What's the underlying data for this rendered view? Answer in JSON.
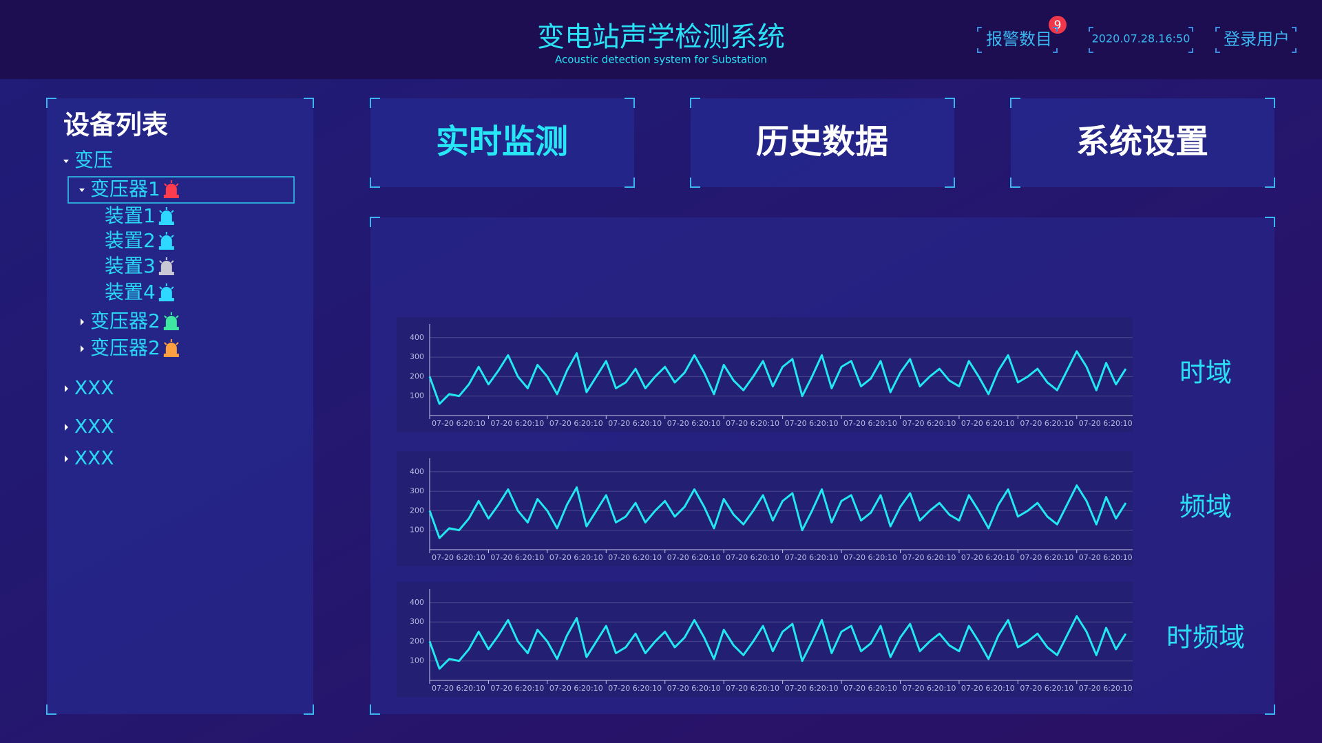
{
  "header": {
    "title": "变电站声学检测系统",
    "subtitle": "Acoustic detection system for Substation",
    "alarm_label": "报警数目",
    "alarm_count": 9,
    "datetime": "2020.07.28.16:50",
    "login": "登录用户"
  },
  "sidebar": {
    "title": "设备列表",
    "tree": [
      {
        "label": "变压",
        "expanded": true,
        "children": [
          {
            "label": "变压器1",
            "alarm": "#ff3b4e",
            "expanded": true,
            "selected": true,
            "children": [
              {
                "label": "装置1",
                "alarm": "#2fd8ff"
              },
              {
                "label": "装置2",
                "alarm": "#2fd8ff"
              },
              {
                "label": "装置3",
                "alarm": "#c9c9d6"
              },
              {
                "label": "装置4",
                "alarm": "#2fd8ff"
              }
            ]
          },
          {
            "label": "变压器2",
            "alarm": "#3ee8a0",
            "expanded": false
          },
          {
            "label": "变压器2",
            "alarm": "#ffa040",
            "expanded": false
          }
        ]
      },
      {
        "label": "XXX",
        "expanded": false
      },
      {
        "label": "XXX",
        "expanded": false
      },
      {
        "label": "XXX",
        "expanded": false
      }
    ]
  },
  "tabs": {
    "items": [
      "实时监测",
      "历史数据",
      "系统设置"
    ],
    "active": 0
  },
  "chart_data": [
    {
      "type": "line",
      "title": "时域",
      "color": "#22e6f0",
      "grid": true,
      "ylim": [
        0,
        470
      ],
      "yticks": [
        100,
        200,
        300,
        400
      ],
      "xlim": [
        0,
        71
      ],
      "xticks": [
        {
          "value": 0,
          "label": "07-20 6:20:10"
        },
        {
          "value": 6,
          "label": "07-20 6:20:10"
        },
        {
          "value": 12,
          "label": "07-20 6:20:10"
        },
        {
          "value": 18,
          "label": "07-20 6:20:10"
        },
        {
          "value": 24,
          "label": "07-20 6:20:10"
        },
        {
          "value": 30,
          "label": "07-20 6:20:10"
        },
        {
          "value": 36,
          "label": "07-20 6:20:10"
        },
        {
          "value": 42,
          "label": "07-20 6:20:10"
        },
        {
          "value": 48,
          "label": "07-20 6:20:10"
        },
        {
          "value": 54,
          "label": "07-20 6:20:10"
        },
        {
          "value": 60,
          "label": "07-20 6:20:10"
        },
        {
          "value": 66,
          "label": "07-20 6:20:10"
        }
      ],
      "values": [
        200,
        60,
        110,
        100,
        160,
        250,
        160,
        230,
        310,
        200,
        140,
        260,
        200,
        110,
        230,
        320,
        120,
        200,
        280,
        140,
        170,
        240,
        140,
        200,
        250,
        170,
        220,
        310,
        220,
        110,
        260,
        180,
        130,
        200,
        280,
        150,
        250,
        290,
        100,
        200,
        310,
        140,
        250,
        280,
        150,
        190,
        280,
        120,
        220,
        290,
        150,
        200,
        240,
        180,
        150,
        280,
        200,
        110,
        230,
        310,
        170,
        200,
        240,
        170,
        130,
        230,
        330,
        250,
        130,
        270,
        160,
        240
      ]
    },
    {
      "type": "line",
      "title": "频域",
      "color": "#22e6f0",
      "grid": true,
      "ylim": [
        0,
        470
      ],
      "yticks": [
        100,
        200,
        300,
        400
      ],
      "xlim": [
        0,
        71
      ],
      "xticks": [
        {
          "value": 0,
          "label": "07-20 6:20:10"
        },
        {
          "value": 6,
          "label": "07-20 6:20:10"
        },
        {
          "value": 12,
          "label": "07-20 6:20:10"
        },
        {
          "value": 18,
          "label": "07-20 6:20:10"
        },
        {
          "value": 24,
          "label": "07-20 6:20:10"
        },
        {
          "value": 30,
          "label": "07-20 6:20:10"
        },
        {
          "value": 36,
          "label": "07-20 6:20:10"
        },
        {
          "value": 42,
          "label": "07-20 6:20:10"
        },
        {
          "value": 48,
          "label": "07-20 6:20:10"
        },
        {
          "value": 54,
          "label": "07-20 6:20:10"
        },
        {
          "value": 60,
          "label": "07-20 6:20:10"
        },
        {
          "value": 66,
          "label": "07-20 6:20:10"
        }
      ],
      "values": [
        200,
        60,
        110,
        100,
        160,
        250,
        160,
        230,
        310,
        200,
        140,
        260,
        200,
        110,
        230,
        320,
        120,
        200,
        280,
        140,
        170,
        240,
        140,
        200,
        250,
        170,
        220,
        310,
        220,
        110,
        260,
        180,
        130,
        200,
        280,
        150,
        250,
        290,
        100,
        200,
        310,
        140,
        250,
        280,
        150,
        190,
        280,
        120,
        220,
        290,
        150,
        200,
        240,
        180,
        150,
        280,
        200,
        110,
        230,
        310,
        170,
        200,
        240,
        170,
        130,
        230,
        330,
        250,
        130,
        270,
        160,
        240
      ]
    },
    {
      "type": "line",
      "title": "时频域",
      "color": "#22e6f0",
      "grid": true,
      "ylim": [
        0,
        470
      ],
      "yticks": [
        100,
        200,
        300,
        400
      ],
      "xlim": [
        0,
        71
      ],
      "xticks": [
        {
          "value": 0,
          "label": "07-20 6:20:10"
        },
        {
          "value": 6,
          "label": "07-20 6:20:10"
        },
        {
          "value": 12,
          "label": "07-20 6:20:10"
        },
        {
          "value": 18,
          "label": "07-20 6:20:10"
        },
        {
          "value": 24,
          "label": "07-20 6:20:10"
        },
        {
          "value": 30,
          "label": "07-20 6:20:10"
        },
        {
          "value": 36,
          "label": "07-20 6:20:10"
        },
        {
          "value": 42,
          "label": "07-20 6:20:10"
        },
        {
          "value": 48,
          "label": "07-20 6:20:10"
        },
        {
          "value": 54,
          "label": "07-20 6:20:10"
        },
        {
          "value": 60,
          "label": "07-20 6:20:10"
        },
        {
          "value": 66,
          "label": "07-20 6:20:10"
        }
      ],
      "values": [
        200,
        60,
        110,
        100,
        160,
        250,
        160,
        230,
        310,
        200,
        140,
        260,
        200,
        110,
        230,
        320,
        120,
        200,
        280,
        140,
        170,
        240,
        140,
        200,
        250,
        170,
        220,
        310,
        220,
        110,
        260,
        180,
        130,
        200,
        280,
        150,
        250,
        290,
        100,
        200,
        310,
        140,
        250,
        280,
        150,
        190,
        280,
        120,
        220,
        290,
        150,
        200,
        240,
        180,
        150,
        280,
        200,
        110,
        230,
        310,
        170,
        200,
        240,
        170,
        130,
        230,
        330,
        250,
        130,
        270,
        160,
        240
      ]
    }
  ]
}
